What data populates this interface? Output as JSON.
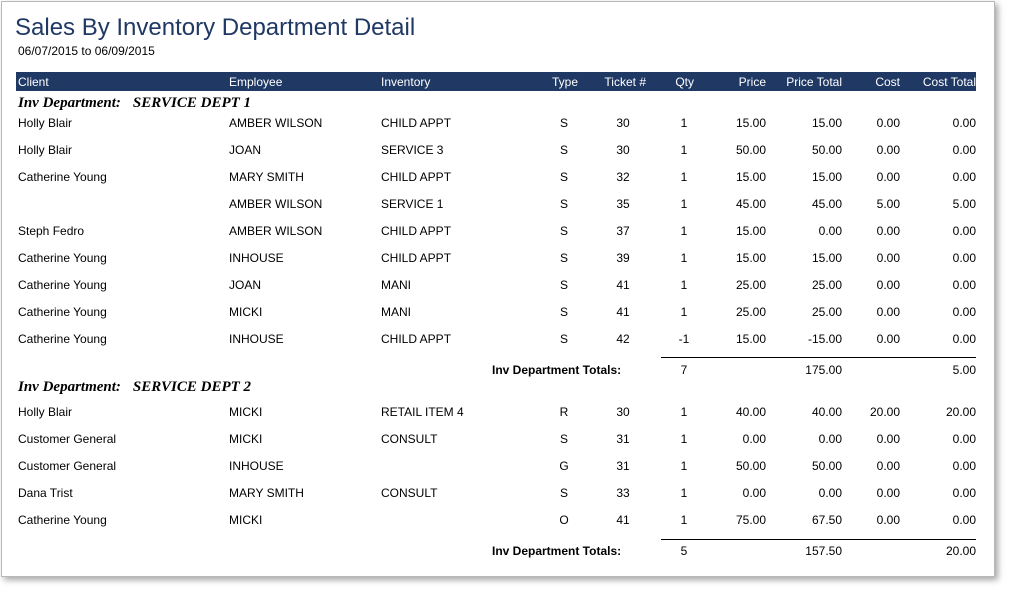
{
  "report": {
    "title": "Sales By Inventory Department Detail",
    "date_range": "06/07/2015 to 06/09/2015"
  },
  "columns": {
    "client": "Client",
    "employee": "Employee",
    "inventory": "Inventory",
    "type": "Type",
    "ticket": "Ticket #",
    "qty": "Qty",
    "price": "Price",
    "price_total": "Price Total",
    "cost": "Cost",
    "cost_total": "Cost Total"
  },
  "dept_label": "Inv Department:",
  "totals_label": "Inv Department  Totals:",
  "departments": [
    {
      "name": "SERVICE DEPT 1",
      "rows": [
        {
          "client": "Holly Blair",
          "employee": "AMBER WILSON",
          "inventory": "CHILD APPT",
          "type": "S",
          "ticket": "30",
          "qty": "1",
          "price": "15.00",
          "price_total": "15.00",
          "cost": "0.00",
          "cost_total": "0.00"
        },
        {
          "client": "Holly Blair",
          "employee": "JOAN",
          "inventory": "SERVICE 3",
          "type": "S",
          "ticket": "30",
          "qty": "1",
          "price": "50.00",
          "price_total": "50.00",
          "cost": "0.00",
          "cost_total": "0.00"
        },
        {
          "client": "Catherine Young",
          "employee": "MARY SMITH",
          "inventory": "CHILD APPT",
          "type": "S",
          "ticket": "32",
          "qty": "1",
          "price": "15.00",
          "price_total": "15.00",
          "cost": "0.00",
          "cost_total": "0.00"
        },
        {
          "client": "",
          "employee": "AMBER WILSON",
          "inventory": "SERVICE 1",
          "type": "S",
          "ticket": "35",
          "qty": "1",
          "price": "45.00",
          "price_total": "45.00",
          "cost": "5.00",
          "cost_total": "5.00"
        },
        {
          "client": "Steph Fedro",
          "employee": "AMBER WILSON",
          "inventory": "CHILD APPT",
          "type": "S",
          "ticket": "37",
          "qty": "1",
          "price": "15.00",
          "price_total": "0.00",
          "cost": "0.00",
          "cost_total": "0.00"
        },
        {
          "client": "Catherine Young",
          "employee": "INHOUSE",
          "inventory": "CHILD APPT",
          "type": "S",
          "ticket": "39",
          "qty": "1",
          "price": "15.00",
          "price_total": "15.00",
          "cost": "0.00",
          "cost_total": "0.00"
        },
        {
          "client": "Catherine Young",
          "employee": "JOAN",
          "inventory": "MANI",
          "type": "S",
          "ticket": "41",
          "qty": "1",
          "price": "25.00",
          "price_total": "25.00",
          "cost": "0.00",
          "cost_total": "0.00"
        },
        {
          "client": "Catherine Young",
          "employee": "MICKI",
          "inventory": "MANI",
          "type": "S",
          "ticket": "41",
          "qty": "1",
          "price": "25.00",
          "price_total": "25.00",
          "cost": "0.00",
          "cost_total": "0.00"
        },
        {
          "client": "Catherine Young",
          "employee": "INHOUSE",
          "inventory": "CHILD APPT",
          "type": "S",
          "ticket": "42",
          "qty": "-1",
          "price": "15.00",
          "price_total": "-15.00",
          "cost": "0.00",
          "cost_total": "0.00"
        }
      ],
      "totals": {
        "qty": "7",
        "price_total": "175.00",
        "cost_total": "5.00"
      }
    },
    {
      "name": "SERVICE DEPT 2",
      "rows": [
        {
          "client": "Holly Blair",
          "employee": "MICKI",
          "inventory": "RETAIL ITEM 4",
          "type": "R",
          "ticket": "30",
          "qty": "1",
          "price": "40.00",
          "price_total": "40.00",
          "cost": "20.00",
          "cost_total": "20.00"
        },
        {
          "client": "Customer General",
          "employee": "MICKI",
          "inventory": "CONSULT",
          "type": "S",
          "ticket": "31",
          "qty": "1",
          "price": "0.00",
          "price_total": "0.00",
          "cost": "0.00",
          "cost_total": "0.00"
        },
        {
          "client": "Customer General",
          "employee": "INHOUSE",
          "inventory": "",
          "type": "G",
          "ticket": "31",
          "qty": "1",
          "price": "50.00",
          "price_total": "50.00",
          "cost": "0.00",
          "cost_total": "0.00"
        },
        {
          "client": "Dana Trist",
          "employee": "MARY SMITH",
          "inventory": "CONSULT",
          "type": "S",
          "ticket": "33",
          "qty": "1",
          "price": "0.00",
          "price_total": "0.00",
          "cost": "0.00",
          "cost_total": "0.00"
        },
        {
          "client": "Catherine Young",
          "employee": "MICKI",
          "inventory": "",
          "type": "O",
          "ticket": "41",
          "qty": "1",
          "price": "75.00",
          "price_total": "67.50",
          "cost": "0.00",
          "cost_total": "0.00"
        }
      ],
      "totals": {
        "qty": "5",
        "price_total": "157.50",
        "cost_total": "20.00"
      }
    }
  ]
}
